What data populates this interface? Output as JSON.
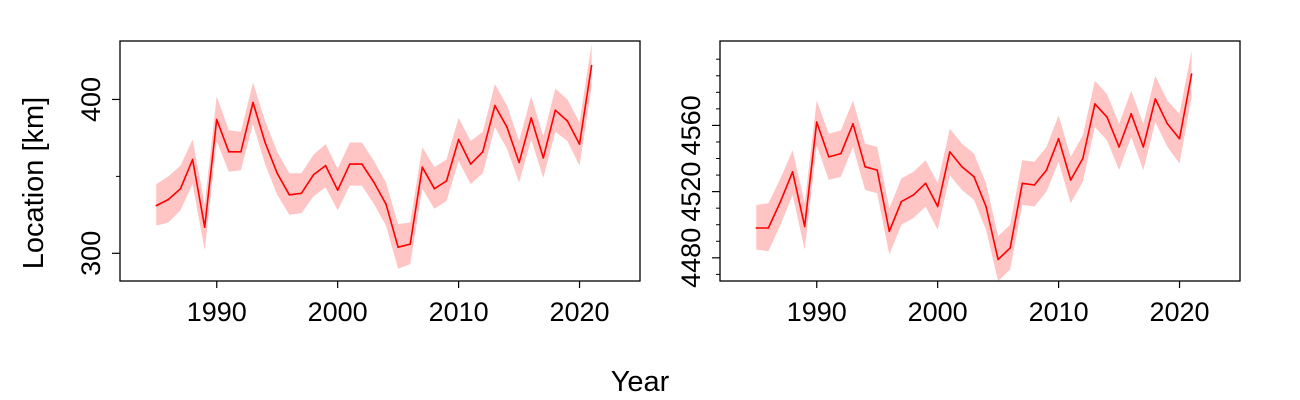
{
  "figure": {
    "ylabel": "Location [km]",
    "xlabel": "Year"
  },
  "chart_data": [
    {
      "type": "line",
      "x": [
        1985,
        1986,
        1987,
        1988,
        1989,
        1990,
        1991,
        1992,
        1993,
        1994,
        1995,
        1996,
        1997,
        1998,
        1999,
        2000,
        2001,
        2002,
        2003,
        2004,
        2005,
        2006,
        2007,
        2008,
        2009,
        2010,
        2011,
        2012,
        2013,
        2014,
        2015,
        2016,
        2017,
        2018,
        2019,
        2020,
        2021
      ],
      "series": [
        {
          "values": [
            331,
            335,
            342,
            361,
            317,
            387,
            366,
            366,
            398,
            372,
            352,
            338,
            339,
            351,
            357,
            341,
            358,
            358,
            346,
            332,
            304,
            306,
            356,
            342,
            347,
            374,
            358,
            366,
            396,
            382,
            359,
            388,
            362,
            393,
            386,
            371,
            422
          ],
          "lower": [
            318,
            320,
            328,
            345,
            302,
            373,
            353,
            354,
            384,
            358,
            338,
            325,
            326,
            337,
            343,
            328,
            344,
            344,
            332,
            318,
            290,
            293,
            342,
            329,
            334,
            360,
            345,
            352,
            382,
            368,
            346,
            374,
            349,
            379,
            373,
            357,
            408
          ],
          "upper": [
            345,
            350,
            357,
            374,
            332,
            402,
            380,
            379,
            411,
            386,
            366,
            352,
            352,
            364,
            371,
            355,
            372,
            372,
            360,
            346,
            319,
            320,
            369,
            356,
            361,
            388,
            373,
            379,
            410,
            396,
            373,
            402,
            376,
            407,
            400,
            385,
            436
          ]
        }
      ],
      "xticks": [
        "1990",
        "2000",
        "2010",
        "2020"
      ],
      "yticks": [
        "300",
        "400"
      ],
      "xlim": [
        1982,
        2025
      ],
      "ylim": [
        282,
        438
      ],
      "colors": {
        "line": "#ff0000",
        "band": "#ffc4c4"
      },
      "grid": false
    },
    {
      "type": "line",
      "x": [
        1985,
        1986,
        1987,
        1988,
        1989,
        1990,
        1991,
        1992,
        1993,
        1994,
        1995,
        1996,
        1997,
        1998,
        1999,
        2000,
        2001,
        2002,
        2003,
        2004,
        2005,
        2006,
        2007,
        2008,
        2009,
        2010,
        2011,
        2012,
        2013,
        2014,
        2015,
        2016,
        2017,
        2018,
        2019,
        2020,
        2021
      ],
      "series": [
        {
          "values": [
            4498,
            4498,
            4514,
            4532,
            4499,
            4562,
            4541,
            4543,
            4561,
            4535,
            4533,
            4496,
            4514,
            4518,
            4525,
            4511,
            4544,
            4535,
            4529,
            4511,
            4479,
            4486,
            4525,
            4524,
            4533,
            4552,
            4527,
            4540,
            4573,
            4565,
            4547,
            4567,
            4547,
            4576,
            4561,
            4552,
            4591
          ],
          "lower": [
            4485,
            4484,
            4500,
            4518,
            4485,
            4548,
            4527,
            4529,
            4547,
            4521,
            4519,
            4482,
            4500,
            4504,
            4511,
            4497,
            4530,
            4521,
            4515,
            4497,
            4466,
            4473,
            4512,
            4511,
            4520,
            4538,
            4513,
            4526,
            4559,
            4551,
            4533,
            4553,
            4533,
            4562,
            4547,
            4537,
            4577
          ],
          "upper": [
            4512,
            4513,
            4528,
            4545,
            4513,
            4575,
            4555,
            4557,
            4575,
            4549,
            4547,
            4510,
            4528,
            4532,
            4539,
            4525,
            4558,
            4549,
            4543,
            4525,
            4493,
            4500,
            4539,
            4538,
            4547,
            4566,
            4541,
            4554,
            4587,
            4579,
            4561,
            4581,
            4561,
            4590,
            4575,
            4567,
            4605
          ]
        }
      ],
      "xticks": [
        "1990",
        "2000",
        "2010",
        "2020"
      ],
      "yticks": [
        "4480",
        "4520",
        "4560"
      ],
      "xlim": [
        1982,
        2025
      ],
      "ylim": [
        4466,
        4611
      ],
      "colors": {
        "line": "#ff0000",
        "band": "#ffc4c4"
      },
      "grid": false
    }
  ]
}
